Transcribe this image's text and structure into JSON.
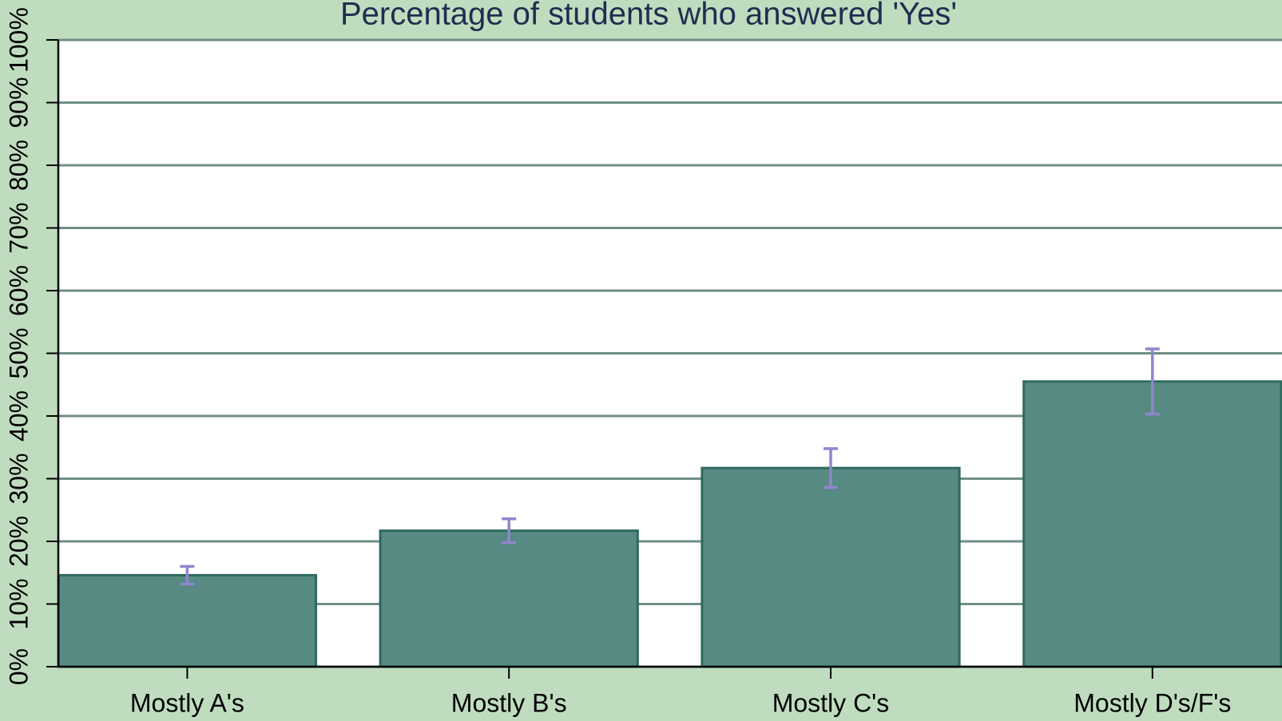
{
  "chart_data": {
    "type": "bar",
    "title": "Percentage of students who answered 'Yes'",
    "categories": [
      "Mostly A's",
      "Mostly B's",
      "Mostly C's",
      "Mostly D's/F's"
    ],
    "values": [
      14.6,
      21.7,
      31.7,
      45.5
    ],
    "errors": [
      1.4,
      1.9,
      3.1,
      5.2
    ],
    "color": "#568a83",
    "edge_color": "#2e6a60",
    "error_color": "#8f86cc",
    "ylim": [
      0,
      100
    ],
    "yticks": [
      {
        "value": 0,
        "label": "0%"
      },
      {
        "value": 10,
        "label": "10%"
      },
      {
        "value": 20,
        "label": "20%"
      },
      {
        "value": 30,
        "label": "30%"
      },
      {
        "value": 40,
        "label": "40%"
      },
      {
        "value": 50,
        "label": "50%"
      },
      {
        "value": 60,
        "label": "60%"
      },
      {
        "value": 70,
        "label": "70%"
      },
      {
        "value": 80,
        "label": "80%"
      },
      {
        "value": 90,
        "label": "90%"
      },
      {
        "value": 100,
        "label": "100%"
      }
    ],
    "grid": true
  }
}
